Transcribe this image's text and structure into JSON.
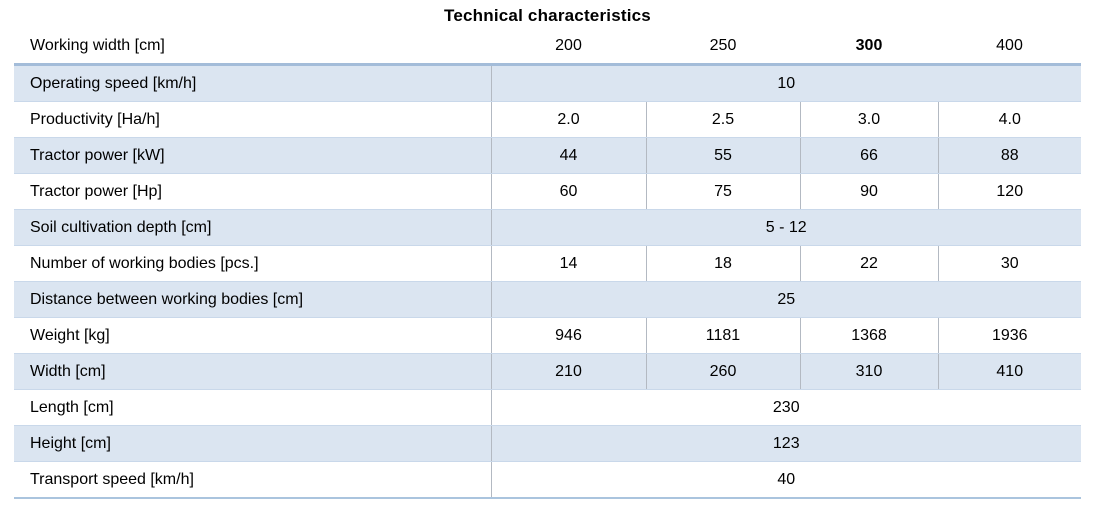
{
  "title": "Technical characteristics",
  "colors": {
    "shaded_row": "#dbe5f1",
    "header_rule": "#a3bcd9",
    "row_line": "#c9d8ea",
    "column_line": "#b3b9c2",
    "bottom_rule": "#aac4de",
    "text": "#000000"
  },
  "table": {
    "header": {
      "label": "Working width [cm]",
      "values": [
        "200",
        "250",
        "300",
        "400"
      ],
      "bold_value_index": 2
    },
    "rows": [
      {
        "label": "Operating speed [km/h]",
        "shaded": true,
        "values": [
          "10"
        ]
      },
      {
        "label": "Productivity [Ha/h]",
        "shaded": false,
        "values": [
          "2.0",
          "2.5",
          "3.0",
          "4.0"
        ]
      },
      {
        "label": "Tractor power [kW]",
        "shaded": true,
        "values": [
          "44",
          "55",
          "66",
          "88"
        ]
      },
      {
        "label": "Tractor power [Hp]",
        "shaded": false,
        "values": [
          "60",
          "75",
          "90",
          "120"
        ]
      },
      {
        "label": "Soil cultivation depth [cm]",
        "shaded": true,
        "values": [
          "5 - 12"
        ]
      },
      {
        "label": "Number of working bodies [pcs.]",
        "shaded": false,
        "values": [
          "14",
          "18",
          "22",
          "30"
        ]
      },
      {
        "label": "Distance between working bodies [cm]",
        "shaded": true,
        "values": [
          "25"
        ]
      },
      {
        "label": "Weight [kg]",
        "shaded": false,
        "values": [
          "946",
          "1181",
          "1368",
          "1936"
        ]
      },
      {
        "label": "Width [cm]",
        "shaded": true,
        "values": [
          "210",
          "260",
          "310",
          "410"
        ]
      },
      {
        "label": "Length [cm]",
        "shaded": false,
        "values": [
          "230"
        ]
      },
      {
        "label": "Height [cm]",
        "shaded": true,
        "values": [
          "123"
        ]
      },
      {
        "label": "Transport speed [km/h]",
        "shaded": false,
        "values": [
          "40"
        ]
      }
    ]
  }
}
